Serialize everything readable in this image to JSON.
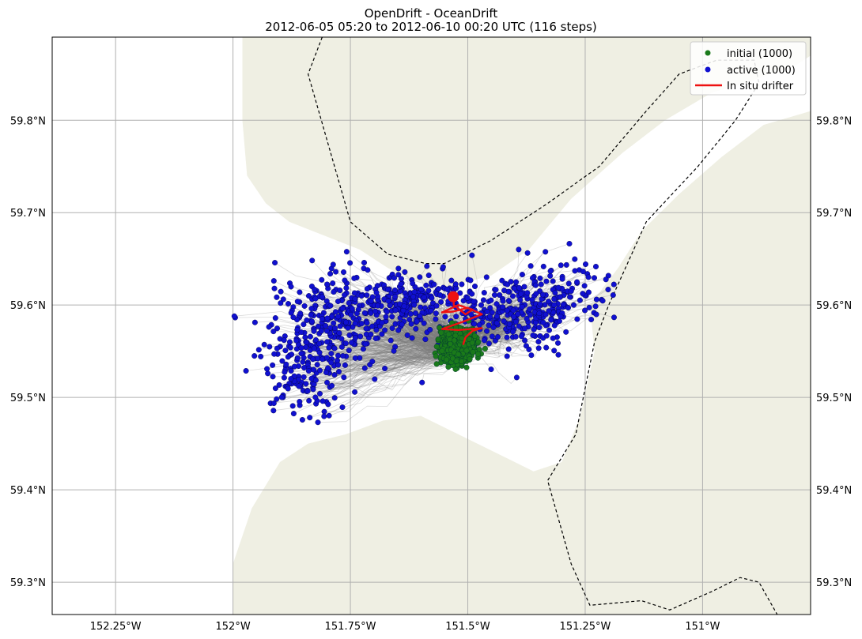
{
  "title": "OpenDrift - OceanDrift",
  "subtitle": "2012-06-05 05:20 to 2012-06-10 00:20 UTC (116 steps)",
  "colors": {
    "land": "#efefe3",
    "trajectory": "#7f7f7f",
    "initial": "#1a7a1a",
    "active": "#1010d0",
    "drifter": "#ee1111",
    "grid": "#b0b0b0",
    "boundary": "#000000"
  },
  "legend": {
    "placement": "top-right",
    "items": [
      {
        "label": "initial (1000)",
        "marker": "dot",
        "color": "#1a7a1a"
      },
      {
        "label": "active (1000)",
        "marker": "dot",
        "color": "#1010d0"
      },
      {
        "label": "In situ drifter",
        "marker": "line",
        "color": "#ee1111"
      }
    ]
  },
  "chart_data": {
    "type": "scatter",
    "map": true,
    "grid": true,
    "xlim": [
      -152.385,
      -150.77
    ],
    "ylim": [
      59.265,
      59.89
    ],
    "x_ticks": [
      {
        "value": -152.25,
        "label": "152.25°W"
      },
      {
        "value": -152.0,
        "label": "152°W"
      },
      {
        "value": -151.75,
        "label": "151.75°W"
      },
      {
        "value": -151.5,
        "label": "151.5°W"
      },
      {
        "value": -151.25,
        "label": "151.25°W"
      },
      {
        "value": -151.0,
        "label": "151°W"
      }
    ],
    "y_ticks": [
      {
        "value": 59.3,
        "label": "59.3°N"
      },
      {
        "value": 59.4,
        "label": "59.4°N"
      },
      {
        "value": 59.5,
        "label": "59.5°N"
      },
      {
        "value": 59.6,
        "label": "59.6°N"
      },
      {
        "value": 59.7,
        "label": "59.7°N"
      },
      {
        "value": 59.8,
        "label": "59.8°N"
      }
    ],
    "series": [
      {
        "name": "initial (1000)",
        "count": 1000,
        "center": [
          -151.522,
          59.556
        ],
        "spread": [
          0.018,
          0.009
        ]
      },
      {
        "name": "active (1000)",
        "count": 1000
      }
    ],
    "active_clusters": [
      {
        "center": [
          -151.78,
          59.58
        ],
        "spread": [
          0.07,
          0.03
        ],
        "share": 0.3
      },
      {
        "center": [
          -151.85,
          59.53
        ],
        "spread": [
          0.045,
          0.025
        ],
        "share": 0.14
      },
      {
        "center": [
          -151.62,
          59.605
        ],
        "spread": [
          0.06,
          0.015
        ],
        "share": 0.22
      },
      {
        "center": [
          -151.38,
          59.59
        ],
        "spread": [
          0.055,
          0.02
        ],
        "share": 0.17
      },
      {
        "center": [
          -151.3,
          59.615
        ],
        "spread": [
          0.05,
          0.02
        ],
        "share": 0.1
      },
      {
        "center": [
          -151.5,
          59.575
        ],
        "spread": [
          0.05,
          0.015
        ],
        "share": 0.07
      }
    ],
    "drifter": {
      "name": "In situ drifter",
      "track": [
        [
          -151.51,
          59.557
        ],
        [
          -151.505,
          59.565
        ],
        [
          -151.49,
          59.572
        ],
        [
          -151.47,
          59.575
        ],
        [
          -151.52,
          59.573
        ],
        [
          -151.555,
          59.574
        ],
        [
          -151.51,
          59.582
        ],
        [
          -151.47,
          59.59
        ],
        [
          -151.5,
          59.597
        ],
        [
          -151.53,
          59.593
        ],
        [
          -151.555,
          59.592
        ],
        [
          -151.52,
          59.6
        ],
        [
          -151.49,
          59.595
        ],
        [
          -151.505,
          59.59
        ],
        [
          -151.53,
          59.6
        ],
        [
          -151.53,
          59.609
        ]
      ],
      "end": [
        -151.531,
        59.609
      ]
    },
    "land": [
      [
        [
          -151.98,
          59.89
        ],
        [
          -151.98,
          59.8
        ],
        [
          -151.97,
          59.74
        ],
        [
          -151.93,
          59.71
        ],
        [
          -151.88,
          59.69
        ],
        [
          -151.78,
          59.67
        ],
        [
          -151.73,
          59.66
        ],
        [
          -151.67,
          59.64
        ],
        [
          -151.61,
          59.625
        ],
        [
          -151.54,
          59.62
        ],
        [
          -151.45,
          59.632
        ],
        [
          -151.37,
          59.66
        ],
        [
          -151.28,
          59.715
        ],
        [
          -151.17,
          59.765
        ],
        [
          -151.08,
          59.8
        ],
        [
          -150.98,
          59.83
        ],
        [
          -150.9,
          59.842
        ],
        [
          -150.8,
          59.86
        ],
        [
          -150.77,
          59.87
        ],
        [
          -150.77,
          59.89
        ]
      ],
      [
        [
          -150.77,
          59.81
        ],
        [
          -150.87,
          59.795
        ],
        [
          -150.96,
          59.76
        ],
        [
          -151.05,
          59.72
        ],
        [
          -151.13,
          59.68
        ],
        [
          -151.18,
          59.64
        ],
        [
          -151.24,
          59.6
        ],
        [
          -151.23,
          59.55
        ],
        [
          -151.26,
          59.48
        ],
        [
          -151.3,
          59.43
        ],
        [
          -151.36,
          59.42
        ],
        [
          -151.44,
          59.44
        ],
        [
          -151.52,
          59.46
        ],
        [
          -151.6,
          59.48
        ],
        [
          -151.68,
          59.475
        ],
        [
          -151.76,
          59.46
        ],
        [
          -151.84,
          59.45
        ],
        [
          -151.9,
          59.43
        ],
        [
          -151.96,
          59.38
        ],
        [
          -152.0,
          59.32
        ],
        [
          -152.0,
          59.265
        ],
        [
          -150.77,
          59.265
        ]
      ]
    ],
    "boundary": [
      [
        [
          -151.81,
          59.89
        ],
        [
          -151.84,
          59.85
        ],
        [
          -151.75,
          59.69
        ],
        [
          -151.67,
          59.655
        ],
        [
          -151.59,
          59.645
        ],
        [
          -151.55,
          59.645
        ],
        [
          -151.45,
          59.67
        ],
        [
          -151.33,
          59.71
        ],
        [
          -151.22,
          59.75
        ],
        [
          -151.12,
          59.81
        ],
        [
          -151.05,
          59.85
        ],
        [
          -150.97,
          59.865
        ],
        [
          -150.89,
          59.865
        ],
        [
          -150.88,
          59.84
        ],
        [
          -150.93,
          59.8
        ],
        [
          -151.01,
          59.75
        ],
        [
          -151.12,
          59.69
        ],
        [
          -151.2,
          59.6
        ],
        [
          -151.23,
          59.56
        ],
        [
          -151.27,
          59.46
        ],
        [
          -151.33,
          59.41
        ],
        [
          -151.28,
          59.32
        ],
        [
          -151.24,
          59.275
        ],
        [
          -151.13,
          59.28
        ],
        [
          -151.07,
          59.27
        ],
        [
          -150.98,
          59.29
        ],
        [
          -150.92,
          59.305
        ],
        [
          -150.88,
          59.3
        ],
        [
          -150.83,
          59.255
        ]
      ]
    ]
  }
}
